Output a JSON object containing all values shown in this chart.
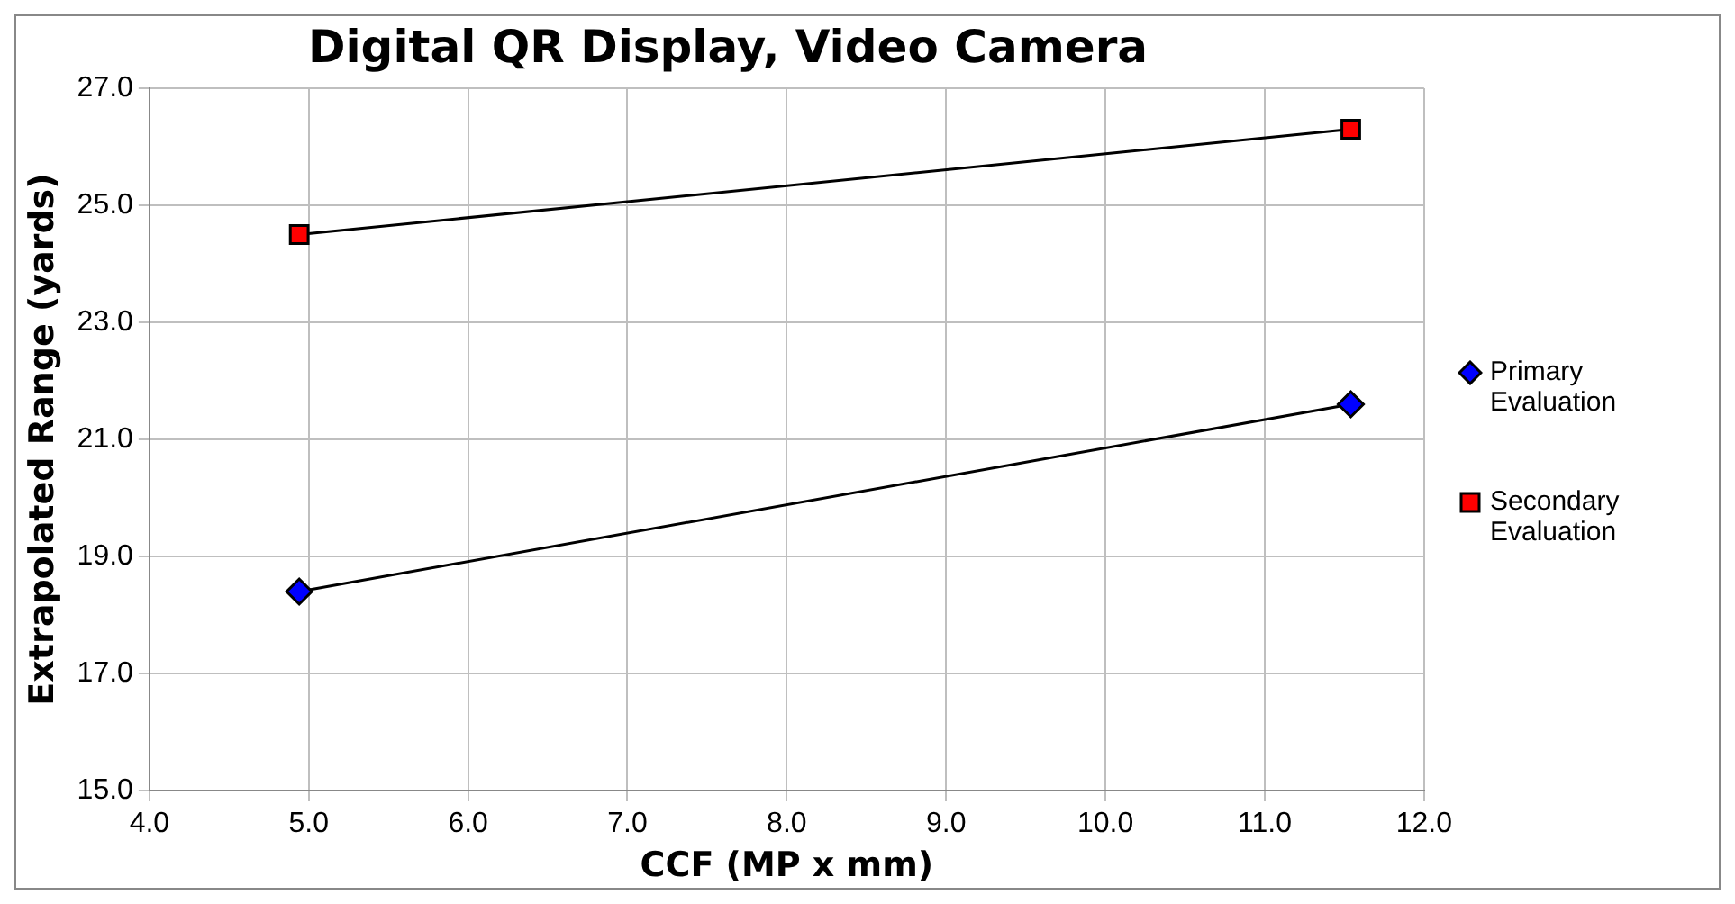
{
  "chart_data": {
    "type": "line",
    "title": "Digital QR Display, Video Camera",
    "xlabel": "CCF (MP x mm)",
    "ylabel": "Extrapolated Range (yards)",
    "xlim": [
      4.0,
      12.0
    ],
    "xticks": [
      {
        "value": 4,
        "label": "4.0"
      },
      {
        "value": 5,
        "label": "5.0"
      },
      {
        "value": 6,
        "label": "6.0"
      },
      {
        "value": 7,
        "label": "7.0"
      },
      {
        "value": 8,
        "label": "8.0"
      },
      {
        "value": 9,
        "label": "9.0"
      },
      {
        "value": 10,
        "label": "10.0"
      },
      {
        "value": 11,
        "label": "11.0"
      },
      {
        "value": 12,
        "label": "12.0"
      }
    ],
    "ylim": [
      15.0,
      27.0
    ],
    "yticks": [
      {
        "value": 15,
        "label": "15.0"
      },
      {
        "value": 17,
        "label": "17.0"
      },
      {
        "value": 19,
        "label": "19.0"
      },
      {
        "value": 21,
        "label": "21.0"
      },
      {
        "value": 23,
        "label": "23.0"
      },
      {
        "value": 25,
        "label": "25.0"
      },
      {
        "value": 27,
        "label": "27.0"
      }
    ],
    "grid": true,
    "legend": "right",
    "x": [
      4.94,
      11.54
    ],
    "series": [
      {
        "name": "Primary Evaluation",
        "color": "#0000ff",
        "marker": "diamond",
        "values": [
          18.4,
          21.6
        ]
      },
      {
        "name": "Secondary Evaluation",
        "color": "#ff0000",
        "marker": "square",
        "values": [
          24.5,
          26.3
        ]
      }
    ]
  }
}
